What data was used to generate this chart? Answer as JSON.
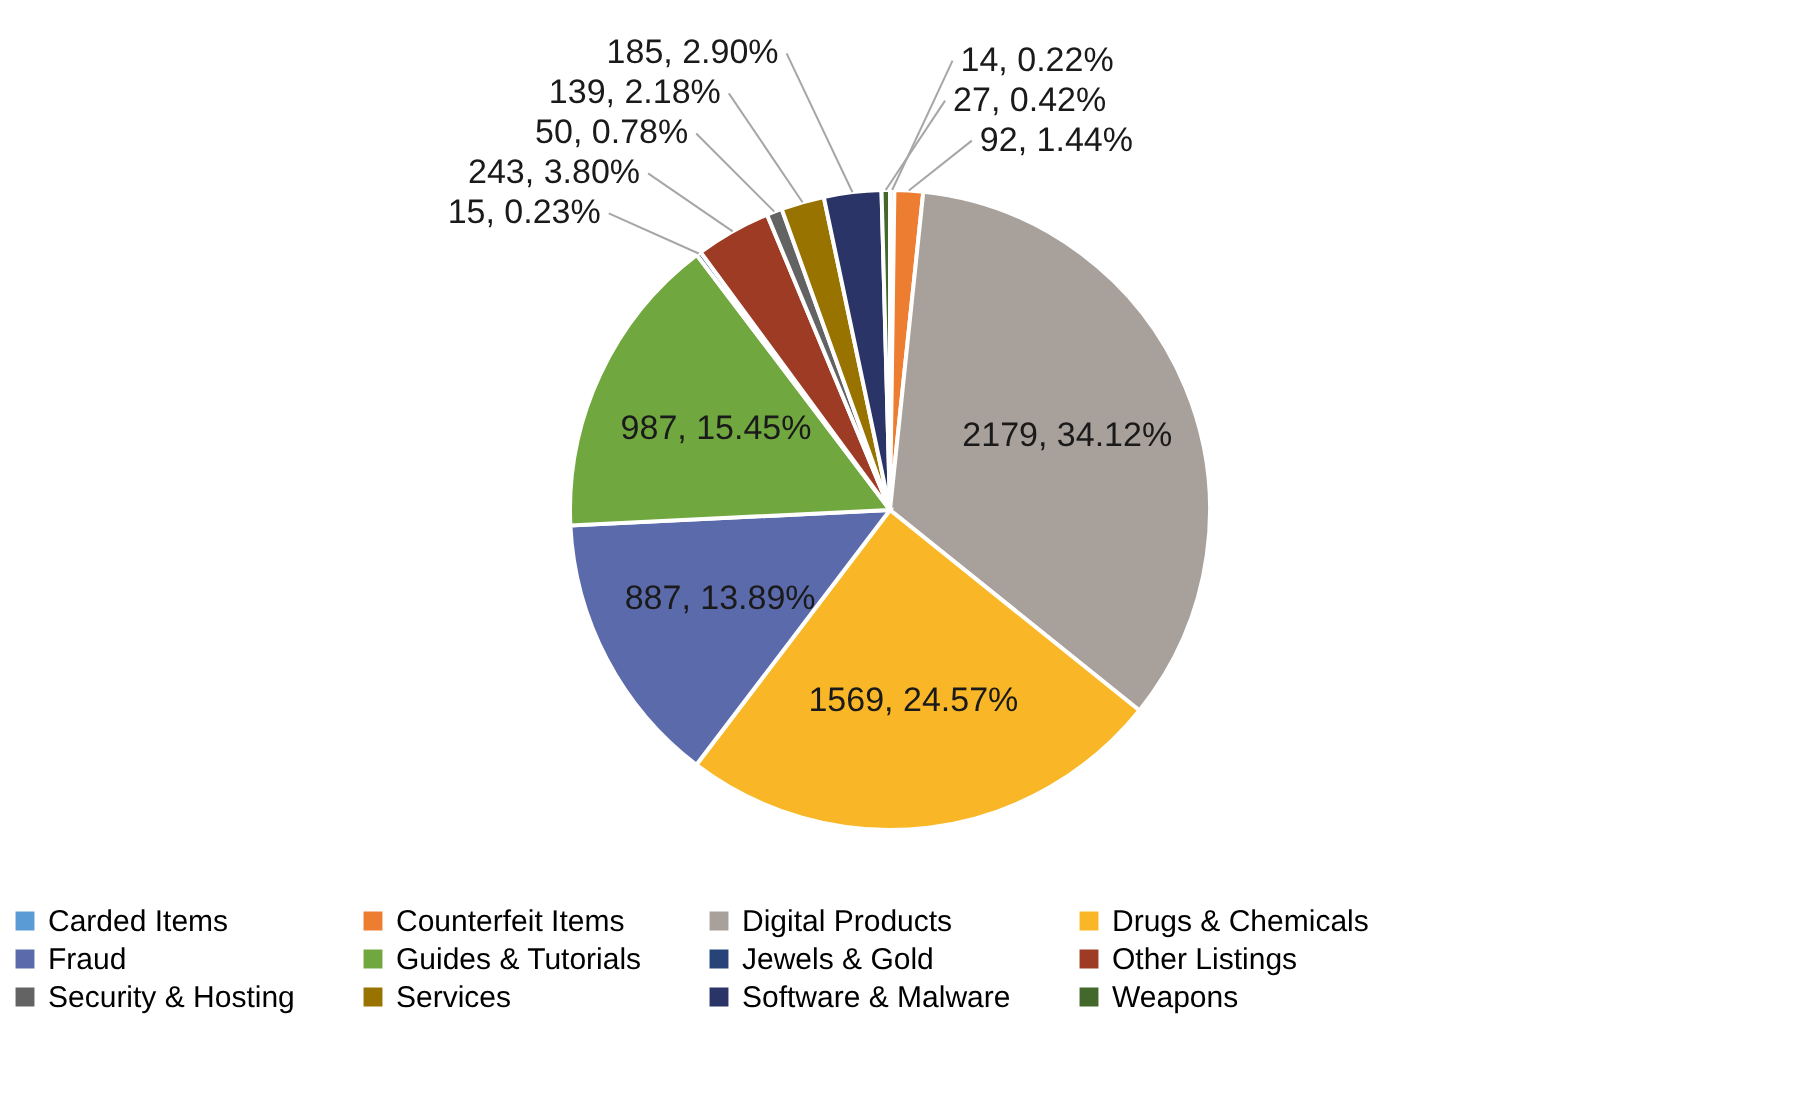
{
  "chart_data": {
    "type": "pie",
    "categories": [
      "Carded Items",
      "Counterfeit Items",
      "Digital Products",
      "Drugs & Chemicals",
      "Fraud",
      "Guides & Tutorials",
      "Jewels & Gold",
      "Other Listings",
      "Security & Hosting",
      "Services",
      "Software & Malware",
      "Weapons"
    ],
    "values": [
      14,
      92,
      2179,
      1569,
      887,
      987,
      15,
      243,
      50,
      139,
      185,
      27
    ],
    "value_labels": [
      "14, 0.22%",
      "92, 1.44%",
      "2179, 34.12%",
      "1569, 24.57%",
      "887, 13.89%",
      "987, 15.45%",
      "15, 0.23%",
      "243, 3.80%",
      "50, 0.78%",
      "139, 2.18%",
      "185, 2.90%",
      "27, 0.42%"
    ],
    "colors": [
      "#5b9bd5",
      "#ed7d31",
      "#a8a09b",
      "#f9b727",
      "#5b6aab",
      "#70a83f",
      "#264478",
      "#9e3b25",
      "#636363",
      "#997300",
      "#2b3467",
      "#43682b"
    ],
    "legend": "bottom"
  }
}
